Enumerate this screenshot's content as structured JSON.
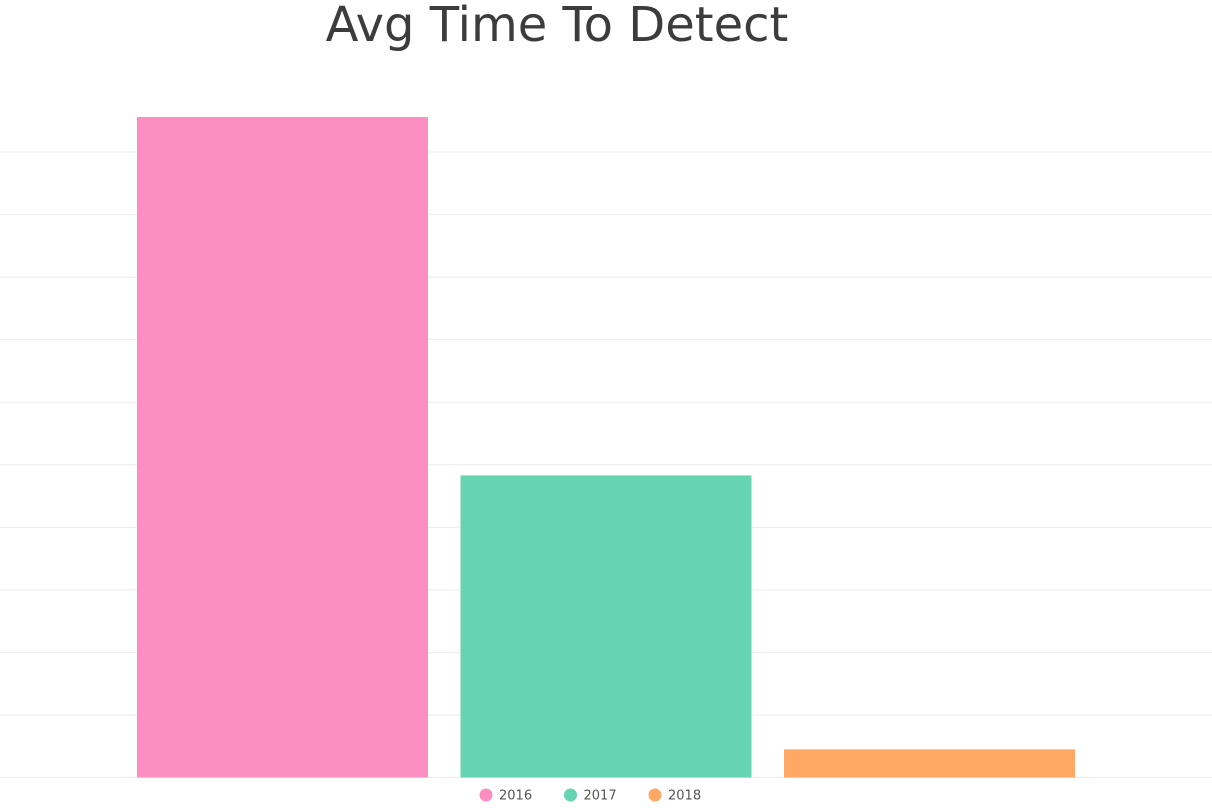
{
  "chart_data": {
    "type": "bar",
    "title": "Avg Time To Detect",
    "categories": [
      null
    ],
    "series": [
      {
        "name": "2016",
        "color": "#fc8ec1",
        "values": [
          10.56
        ]
      },
      {
        "name": "2017",
        "color": "#66d3b1",
        "values": [
          4.83
        ]
      },
      {
        "name": "2018",
        "color": "#ffa764",
        "values": [
          0.45
        ]
      }
    ],
    "ylim": [
      0,
      11
    ],
    "yticks": [
      0,
      1,
      2,
      3,
      4,
      5,
      6,
      7,
      8,
      9,
      10
    ],
    "grid": true,
    "legend": "bottom"
  }
}
